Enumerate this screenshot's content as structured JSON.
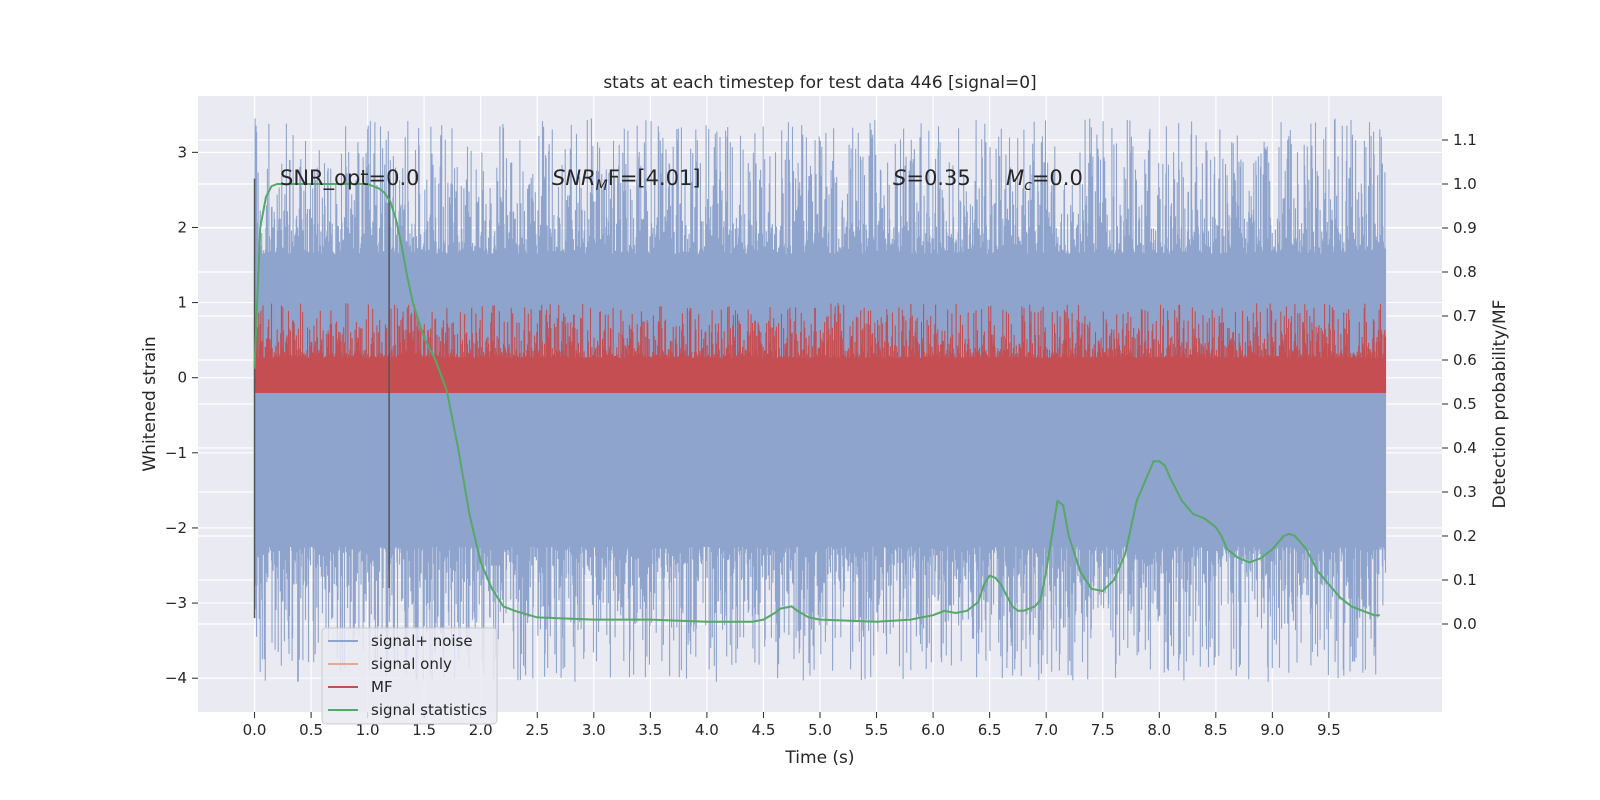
{
  "chart_data": {
    "type": "line",
    "title": "stats at each timestep for test data 446 [signal=0]",
    "xlabel": "Time (s)",
    "ylabel_left": "Whitened strain",
    "ylabel_right": "Detection probability/MF",
    "xlim": [
      -0.5,
      10.5
    ],
    "ylim_left": [
      -4.45,
      3.75
    ],
    "ylim_right": [
      -0.2,
      1.2
    ],
    "x_ticks": [
      "0.0",
      "0.5",
      "1.0",
      "1.5",
      "2.0",
      "2.5",
      "3.0",
      "3.5",
      "4.0",
      "4.5",
      "5.0",
      "5.5",
      "6.0",
      "6.5",
      "7.0",
      "7.5",
      "8.0",
      "8.5",
      "9.0",
      "9.5"
    ],
    "y_left_ticks": [
      "3",
      "2",
      "1",
      "0",
      "−1",
      "−2",
      "−3",
      "−4"
    ],
    "y_right_ticks": [
      "1.1",
      "1.0",
      "0.9",
      "0.8",
      "0.7",
      "0.6",
      "0.5",
      "0.4",
      "0.3",
      "0.2",
      "0.1",
      "0.0"
    ],
    "grid": true,
    "legend_placement": "lower-left",
    "annotations": {
      "snr_opt": "SNR_opt=0.0",
      "snr_mf_base": "SNR",
      "snr_mf_sub": "M",
      "snr_mf_rest": "F=[4.01]",
      "s_symbol": "S",
      "s_value": "=0.35",
      "mc_base": "M",
      "mc_sub": "c",
      "mc_value": "=0.0"
    },
    "vertical_lines": [
      {
        "x": 0.0,
        "y_range": [
          -3.2,
          2.65
        ]
      },
      {
        "x": 1.19,
        "y_range": [
          -2.8,
          2.65
        ]
      }
    ],
    "series": [
      {
        "name": "signal+ noise",
        "color": "#8fa4cc",
        "axis": "left",
        "x_range": [
          0.0,
          10.0
        ],
        "median": -0.3,
        "typical_min": -2.4,
        "typical_max": 1.8,
        "extreme_max": 3.45,
        "extreme_min": -4.05
      },
      {
        "name": "signal only",
        "color": "#e8a88e",
        "axis": "left",
        "values": []
      },
      {
        "name": "MF",
        "color": "#c44e52",
        "axis": "right",
        "x_range": [
          0.0,
          10.0
        ],
        "baseline": 0.57,
        "typical_max": 0.68,
        "extreme_max": 0.73
      },
      {
        "name": "signal statistics",
        "color": "#55a868",
        "axis": "right",
        "x": [
          0.0,
          0.05,
          0.1,
          0.15,
          0.2,
          0.3,
          0.5,
          0.8,
          1.0,
          1.1,
          1.15,
          1.2,
          1.25,
          1.3,
          1.35,
          1.4,
          1.5,
          1.6,
          1.7,
          1.8,
          1.9,
          2.0,
          2.1,
          2.2,
          2.3,
          2.5,
          3.0,
          3.5,
          4.0,
          4.4,
          4.5,
          4.6,
          4.65,
          4.75,
          4.8,
          4.9,
          5.0,
          5.5,
          5.8,
          5.9,
          6.0,
          6.1,
          6.2,
          6.3,
          6.4,
          6.45,
          6.5,
          6.55,
          6.6,
          6.7,
          6.75,
          6.8,
          6.9,
          6.95,
          7.0,
          7.05,
          7.1,
          7.15,
          7.2,
          7.3,
          7.4,
          7.5,
          7.6,
          7.7,
          7.8,
          7.9,
          7.95,
          8.0,
          8.05,
          8.1,
          8.2,
          8.3,
          8.4,
          8.5,
          8.55,
          8.6,
          8.7,
          8.8,
          8.9,
          9.0,
          9.1,
          9.15,
          9.2,
          9.3,
          9.4,
          9.5,
          9.6,
          9.7,
          9.8,
          9.9,
          9.95
        ],
        "values": [
          0.58,
          0.9,
          0.97,
          0.995,
          1.0,
          1.0,
          1.0,
          1.0,
          1.0,
          0.99,
          0.98,
          0.96,
          0.92,
          0.86,
          0.79,
          0.73,
          0.65,
          0.6,
          0.53,
          0.4,
          0.25,
          0.14,
          0.08,
          0.04,
          0.03,
          0.015,
          0.01,
          0.01,
          0.005,
          0.005,
          0.01,
          0.025,
          0.035,
          0.04,
          0.03,
          0.015,
          0.01,
          0.005,
          0.01,
          0.015,
          0.02,
          0.03,
          0.025,
          0.03,
          0.05,
          0.09,
          0.11,
          0.105,
          0.09,
          0.04,
          0.03,
          0.03,
          0.04,
          0.055,
          0.12,
          0.2,
          0.28,
          0.27,
          0.2,
          0.12,
          0.08,
          0.075,
          0.1,
          0.16,
          0.28,
          0.34,
          0.37,
          0.37,
          0.36,
          0.33,
          0.28,
          0.25,
          0.24,
          0.22,
          0.2,
          0.17,
          0.15,
          0.14,
          0.15,
          0.17,
          0.2,
          0.205,
          0.2,
          0.17,
          0.12,
          0.09,
          0.06,
          0.04,
          0.03,
          0.02,
          0.02
        ]
      }
    ]
  }
}
